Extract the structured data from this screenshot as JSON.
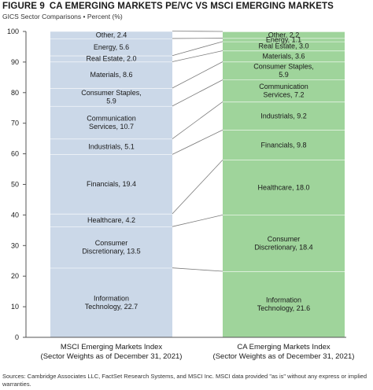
{
  "figure": {
    "number": "FIGURE 9",
    "title": "CA EMERGING MARKETS PE/VC VS MSCI EMERGING MARKETS",
    "subtitle": "GICS Sector Comparisons • Percent (%)",
    "sources": "Sources: Cambridge Associates LLC, FactSet Research Systems, and MSCI Inc. MSCI data provided \"as is\" without any express or implied warranties."
  },
  "chart_data": {
    "type": "bar",
    "stacked": true,
    "ylim": [
      0,
      100
    ],
    "yticks": [
      0,
      10,
      20,
      30,
      40,
      50,
      60,
      70,
      80,
      90,
      100
    ],
    "grid": false,
    "categories": [
      [
        "MSCI Emerging Markets Index",
        "(Sector Weights as of December 31, 2021)"
      ],
      [
        "CA Emerging Markets Index",
        "(Sector Weights as of December 31, 2021)"
      ]
    ],
    "colors": {
      "msci": "#cbd8e8",
      "ca": "#9fd49b",
      "divider": "#ffffff",
      "connector": "#7a7a7a",
      "axis": "#555555"
    },
    "series": [
      {
        "segments": [
          {
            "sector": "Information Technology",
            "label": [
              "Information",
              "Technology, 22.7"
            ],
            "value": 22.7
          },
          {
            "sector": "Consumer Discretionary",
            "label": [
              "Consumer",
              "Discretionary, 13.5"
            ],
            "value": 13.5
          },
          {
            "sector": "Healthcare",
            "label": [
              "Healthcare, 4.2"
            ],
            "value": 4.2
          },
          {
            "sector": "Financials",
            "label": [
              "Financials, 19.4"
            ],
            "value": 19.4
          },
          {
            "sector": "Industrials",
            "label": [
              "Industrials, 5.1"
            ],
            "value": 5.1
          },
          {
            "sector": "Communication Services",
            "label": [
              "Communication",
              "Services, 10.7"
            ],
            "value": 10.7
          },
          {
            "sector": "Consumer Staples",
            "label": [
              "Consumer Staples,",
              "5.9"
            ],
            "value": 5.9
          },
          {
            "sector": "Materials",
            "label": [
              "Materials, 8.6"
            ],
            "value": 8.6
          },
          {
            "sector": "Real Estate",
            "label": [
              "Real Estate, 2.0"
            ],
            "value": 2.0
          },
          {
            "sector": "Energy",
            "label": [
              "Energy, 5.6"
            ],
            "value": 5.6
          },
          {
            "sector": "Other",
            "label": [
              "Other, 2.4"
            ],
            "value": 2.4
          }
        ]
      },
      {
        "segments": [
          {
            "sector": "Information Technology",
            "label": [
              "Information",
              "Technology, 21.6"
            ],
            "value": 21.6
          },
          {
            "sector": "Consumer Discretionary",
            "label": [
              "Consumer",
              "Discretionary, 18.4"
            ],
            "value": 18.4
          },
          {
            "sector": "Healthcare",
            "label": [
              "Healthcare, 18.0"
            ],
            "value": 18.0
          },
          {
            "sector": "Financials",
            "label": [
              "Financials, 9.8"
            ],
            "value": 9.8
          },
          {
            "sector": "Industrials",
            "label": [
              "Industrials, 9.2"
            ],
            "value": 9.2
          },
          {
            "sector": "Communication Services",
            "label": [
              "Communication",
              "Services, 7.2"
            ],
            "value": 7.2
          },
          {
            "sector": "Consumer Staples",
            "label": [
              "Consumer Staples,",
              "5.9"
            ],
            "value": 5.9
          },
          {
            "sector": "Materials",
            "label": [
              "Materials, 3.6"
            ],
            "value": 3.6
          },
          {
            "sector": "Real Estate",
            "label": [
              "Real Estate, 3.0"
            ],
            "value": 3.0
          },
          {
            "sector": "Energy",
            "label": [
              "Energy, 1.1"
            ],
            "value": 1.1
          },
          {
            "sector": "Other",
            "label": [
              "Other, 2.2"
            ],
            "value": 2.2
          }
        ]
      }
    ]
  }
}
